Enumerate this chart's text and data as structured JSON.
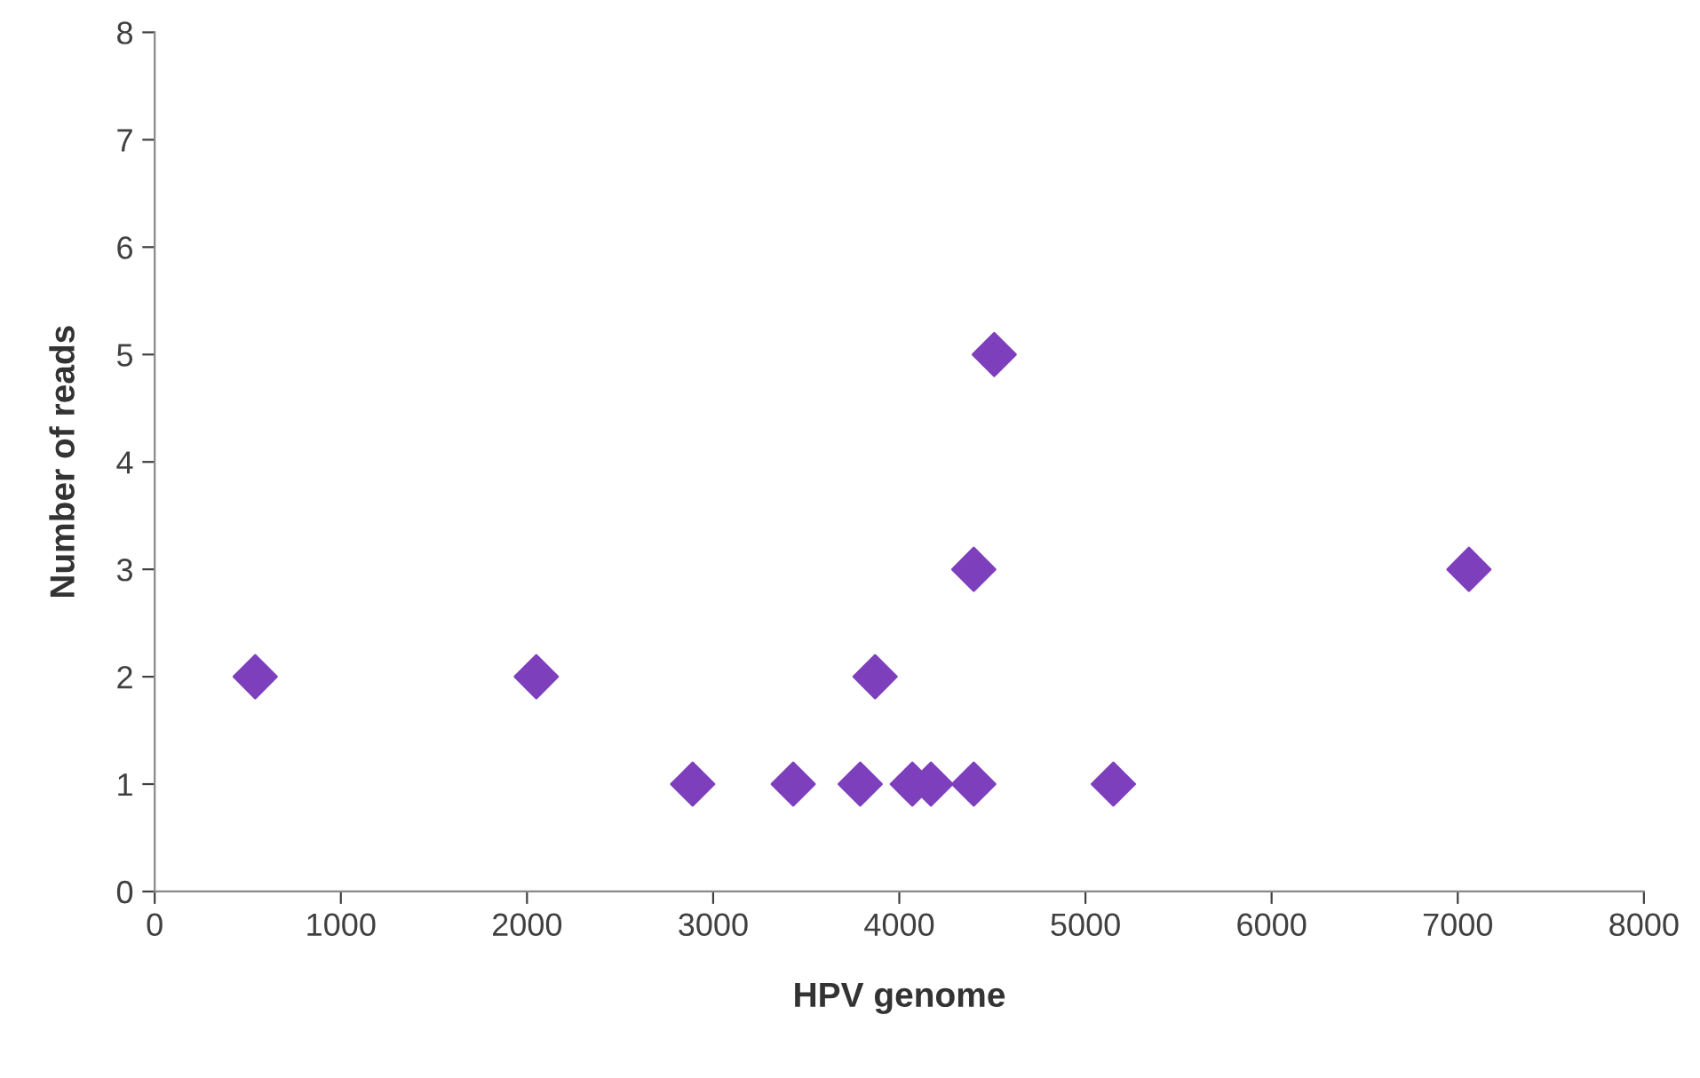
{
  "chart_data": {
    "type": "scatter",
    "xlabel": "HPV genome",
    "ylabel": "Number of reads",
    "series": [
      {
        "color": "#7e3fbd",
        "x": [
          540,
          2050,
          2890,
          3430,
          3790,
          3870,
          4070,
          4170,
          4400,
          4400,
          4510,
          5150,
          7060
        ],
        "values": [
          2,
          2,
          1,
          1,
          1,
          2,
          1,
          1,
          1,
          3,
          5,
          1,
          3
        ]
      }
    ],
    "xlim": [
      0,
      8000
    ],
    "xticks": [
      0,
      1000,
      2000,
      3000,
      4000,
      5000,
      6000,
      7000,
      8000
    ],
    "ylim": [
      0,
      8
    ],
    "yticks": [
      0,
      1,
      2,
      3,
      4,
      5,
      6,
      7,
      8
    ],
    "marker": "diamond",
    "grid": false,
    "legend": false
  }
}
